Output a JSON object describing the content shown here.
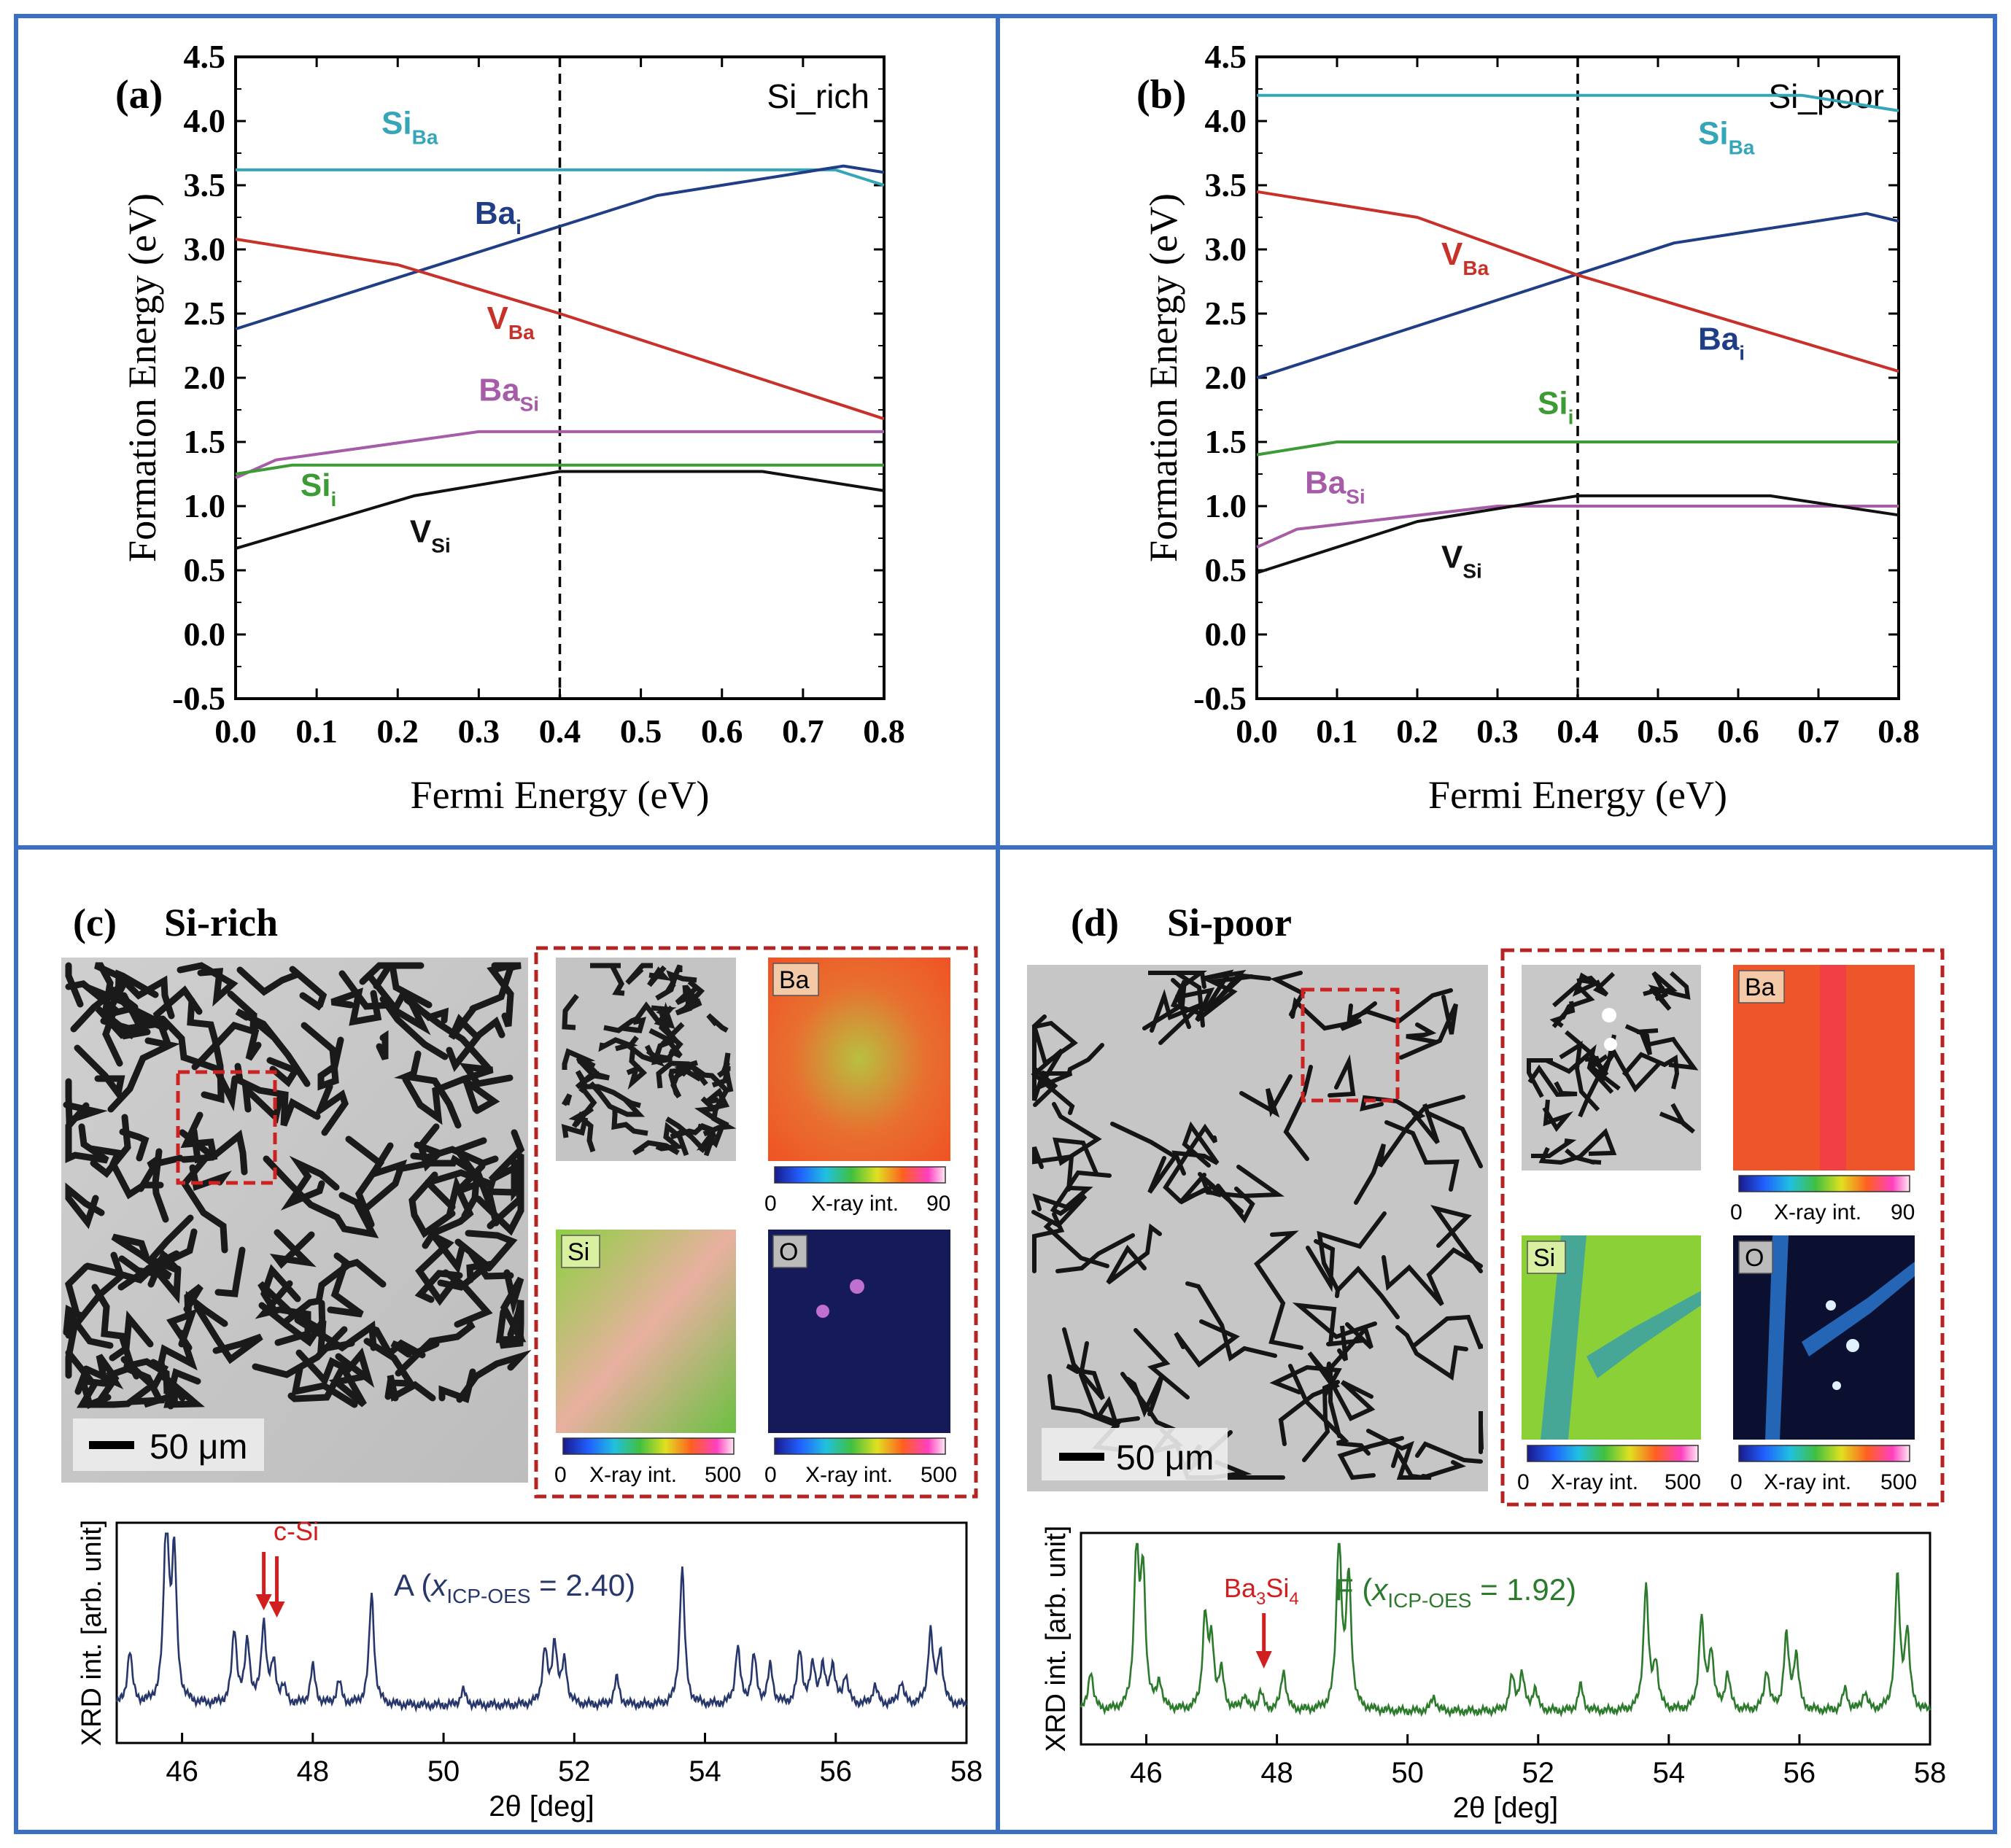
{
  "colors": {
    "frame": "#3a6fc4",
    "siba": "#35a6b8",
    "bai": "#1f3e85",
    "vba": "#c8302a",
    "basi": "#a65ca6",
    "sii": "#3d9b35",
    "vsi": "#111111",
    "dash": "#000000",
    "xrd_a": "#27376b",
    "xrd_f": "#2c7a2c",
    "mark": "#d11f1f"
  },
  "chart_data": [
    {
      "id": "a",
      "type": "line",
      "panel_label": "(a)",
      "condition": "Si_rich",
      "xlabel": "Fermi Energy (eV)",
      "ylabel": "Formation Energy (eV)",
      "xlim": [
        0.0,
        0.8
      ],
      "ylim": [
        -0.5,
        4.5
      ],
      "xticks": [
        "0.0",
        "0.1",
        "0.2",
        "0.3",
        "0.4",
        "0.5",
        "0.6",
        "0.7",
        "0.8"
      ],
      "yticks": [
        "-0.5",
        "0.0",
        "0.5",
        "1.0",
        "1.5",
        "2.0",
        "2.5",
        "3.0",
        "3.5",
        "4.0",
        "4.5"
      ],
      "vline": 0.4,
      "series": [
        {
          "key": "siba",
          "main": "Si",
          "sub": "Ba",
          "label_at": [
            0.18,
            3.9
          ],
          "points": [
            [
              0,
              3.62
            ],
            [
              0.74,
              3.62
            ],
            [
              0.8,
              3.5
            ]
          ]
        },
        {
          "key": "bai",
          "main": "Ba",
          "sub": "i",
          "label_at": [
            0.295,
            3.2
          ],
          "points": [
            [
              0,
              2.38
            ],
            [
              0.52,
              3.42
            ],
            [
              0.75,
              3.65
            ],
            [
              0.8,
              3.6
            ]
          ]
        },
        {
          "key": "vba",
          "main": "V",
          "sub": "Ba",
          "label_at": [
            0.31,
            2.38
          ],
          "points": [
            [
              0,
              3.08
            ],
            [
              0.2,
              2.88
            ],
            [
              0.4,
              2.5
            ],
            [
              0.8,
              1.68
            ]
          ]
        },
        {
          "key": "basi",
          "main": "Ba",
          "sub": "Si",
          "label_at": [
            0.3,
            1.82
          ],
          "points": [
            [
              0,
              1.22
            ],
            [
              0.05,
              1.36
            ],
            [
              0.3,
              1.58
            ],
            [
              0.8,
              1.58
            ]
          ]
        },
        {
          "key": "sii",
          "main": "Si",
          "sub": "i",
          "label_at": [
            0.08,
            1.08
          ],
          "points": [
            [
              0,
              1.25
            ],
            [
              0.07,
              1.32
            ],
            [
              0.8,
              1.32
            ]
          ]
        },
        {
          "key": "vsi",
          "main": "V",
          "sub": "Si",
          "label_at": [
            0.215,
            0.72
          ],
          "points": [
            [
              0,
              0.67
            ],
            [
              0.22,
              1.08
            ],
            [
              0.4,
              1.27
            ],
            [
              0.65,
              1.27
            ],
            [
              0.8,
              1.12
            ]
          ]
        }
      ]
    },
    {
      "id": "b",
      "type": "line",
      "panel_label": "(b)",
      "condition": "Si_poor",
      "xlabel": "Fermi Energy (eV)",
      "ylabel": "Formation Energy (eV)",
      "xlim": [
        0.0,
        0.8
      ],
      "ylim": [
        -0.5,
        4.5
      ],
      "xticks": [
        "0.0",
        "0.1",
        "0.2",
        "0.3",
        "0.4",
        "0.5",
        "0.6",
        "0.7",
        "0.8"
      ],
      "yticks": [
        "-0.5",
        "0.0",
        "0.5",
        "1.0",
        "1.5",
        "2.0",
        "2.5",
        "3.0",
        "3.5",
        "4.0",
        "4.5"
      ],
      "vline": 0.4,
      "series": [
        {
          "key": "siba",
          "main": "Si",
          "sub": "Ba",
          "label_at": [
            0.55,
            3.82
          ],
          "points": [
            [
              0,
              4.2
            ],
            [
              0.68,
              4.2
            ],
            [
              0.8,
              4.08
            ]
          ]
        },
        {
          "key": "bai",
          "main": "Ba",
          "sub": "i",
          "label_at": [
            0.55,
            2.22
          ],
          "points": [
            [
              0,
              2.0
            ],
            [
              0.52,
              3.05
            ],
            [
              0.76,
              3.28
            ],
            [
              0.8,
              3.22
            ]
          ]
        },
        {
          "key": "vba",
          "main": "V",
          "sub": "Ba",
          "label_at": [
            0.23,
            2.88
          ],
          "points": [
            [
              0,
              3.45
            ],
            [
              0.2,
              3.25
            ],
            [
              0.4,
              2.8
            ],
            [
              0.8,
              2.05
            ]
          ]
        },
        {
          "key": "sii",
          "main": "Si",
          "sub": "i",
          "label_at": [
            0.35,
            1.72
          ],
          "points": [
            [
              0,
              1.4
            ],
            [
              0.1,
              1.5
            ],
            [
              0.8,
              1.5
            ]
          ]
        },
        {
          "key": "basi",
          "main": "Ba",
          "sub": "Si",
          "label_at": [
            0.06,
            1.1
          ],
          "points": [
            [
              0,
              0.68
            ],
            [
              0.05,
              0.82
            ],
            [
              0.3,
              1.0
            ],
            [
              0.8,
              1.0
            ]
          ]
        },
        {
          "key": "vsi",
          "main": "V",
          "sub": "Si",
          "label_at": [
            0.23,
            0.52
          ],
          "points": [
            [
              0,
              0.48
            ],
            [
              0.2,
              0.88
            ],
            [
              0.4,
              1.08
            ],
            [
              0.64,
              1.08
            ],
            [
              0.8,
              0.93
            ]
          ]
        }
      ]
    },
    {
      "id": "c",
      "type": "line",
      "title": "Si-rich",
      "panel_label": "(c)",
      "xlabel": "2θ [deg]",
      "ylabel": "XRD int. [arb. unit]",
      "xlim": [
        45,
        58
      ],
      "xticks": [
        "46",
        "48",
        "50",
        "52",
        "54",
        "56",
        "58"
      ],
      "baseline": 0.12,
      "peaks": [
        [
          45.2,
          0.28
        ],
        [
          45.76,
          1.0
        ],
        [
          45.88,
          0.75
        ],
        [
          46.8,
          0.38
        ],
        [
          47.0,
          0.32
        ],
        [
          47.25,
          0.42
        ],
        [
          47.4,
          0.2
        ],
        [
          47.55,
          0.08
        ],
        [
          48.0,
          0.2
        ],
        [
          48.4,
          0.12
        ],
        [
          48.9,
          0.58
        ],
        [
          50.3,
          0.08
        ],
        [
          51.55,
          0.28
        ],
        [
          51.7,
          0.32
        ],
        [
          51.85,
          0.22
        ],
        [
          52.65,
          0.14
        ],
        [
          53.65,
          0.72
        ],
        [
          54.5,
          0.3
        ],
        [
          54.75,
          0.25
        ],
        [
          55.0,
          0.2
        ],
        [
          55.45,
          0.28
        ],
        [
          55.65,
          0.2
        ],
        [
          55.8,
          0.18
        ],
        [
          55.95,
          0.2
        ],
        [
          56.15,
          0.15
        ],
        [
          56.6,
          0.1
        ],
        [
          57.0,
          0.12
        ],
        [
          57.45,
          0.38
        ],
        [
          57.6,
          0.28
        ]
      ],
      "annotation": {
        "text": "c-Si",
        "arrows_at": [
          47.25,
          47.45
        ]
      },
      "sample": {
        "pre": "A (",
        "var": "x",
        "sub": "ICP-OES",
        "post": " = 2.40)"
      }
    },
    {
      "id": "d",
      "type": "line",
      "title": "Si-poor",
      "panel_label": "(d)",
      "xlabel": "2θ [deg]",
      "ylabel": "XRD int. [arb. unit]",
      "xlim": [
        45,
        58
      ],
      "xticks": [
        "46",
        "48",
        "50",
        "52",
        "54",
        "56",
        "58"
      ],
      "baseline": 0.1,
      "peaks": [
        [
          45.15,
          0.22
        ],
        [
          45.85,
          0.85
        ],
        [
          45.95,
          0.72
        ],
        [
          46.2,
          0.15
        ],
        [
          46.9,
          0.5
        ],
        [
          47.0,
          0.35
        ],
        [
          47.15,
          0.2
        ],
        [
          47.5,
          0.08
        ],
        [
          47.75,
          0.1
        ],
        [
          48.1,
          0.22
        ],
        [
          48.95,
          0.95
        ],
        [
          49.1,
          0.72
        ],
        [
          50.4,
          0.08
        ],
        [
          51.6,
          0.18
        ],
        [
          51.75,
          0.2
        ],
        [
          51.95,
          0.12
        ],
        [
          52.65,
          0.14
        ],
        [
          53.65,
          0.68
        ],
        [
          53.8,
          0.25
        ],
        [
          54.5,
          0.5
        ],
        [
          54.65,
          0.32
        ],
        [
          54.9,
          0.2
        ],
        [
          55.5,
          0.22
        ],
        [
          55.8,
          0.4
        ],
        [
          55.95,
          0.3
        ],
        [
          56.7,
          0.12
        ],
        [
          57.0,
          0.1
        ],
        [
          57.5,
          0.72
        ],
        [
          57.65,
          0.42
        ]
      ],
      "annotation": {
        "text_main": "Ba",
        "sub1": "3",
        "text_mid": "Si",
        "sub2": "4",
        "arrows_at": [
          47.8
        ]
      },
      "sample": {
        "pre": "F (",
        "var": "x",
        "sub": "ICP-OES",
        "post": " = 1.92)"
      }
    }
  ],
  "micrographs": {
    "scale_c": "50 μm",
    "scale_d": "50 μm",
    "labels": {
      "ba": "Ba",
      "si": "Si",
      "o": "O"
    },
    "colorbars": {
      "c_ba": {
        "min": "0",
        "max": "90",
        "label": "X-ray int."
      },
      "c_si": {
        "min": "0",
        "max": "500",
        "label": "X-ray int."
      },
      "c_o": {
        "min": "0",
        "max": "500",
        "label": "X-ray int."
      },
      "d_ba": {
        "min": "0",
        "max": "90",
        "label": "X-ray int."
      },
      "d_si": {
        "min": "0",
        "max": "500",
        "label": "X-ray int."
      },
      "d_o": {
        "min": "0",
        "max": "500",
        "label": "X-ray int."
      }
    }
  }
}
